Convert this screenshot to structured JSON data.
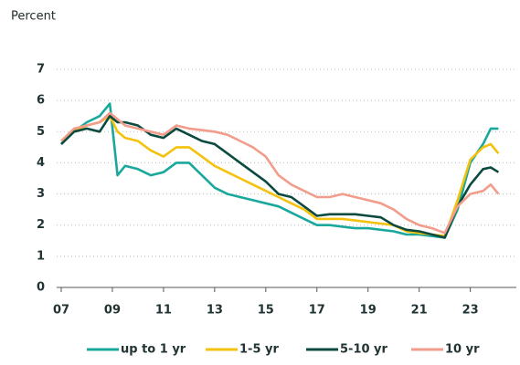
{
  "chart_data": {
    "type": "line",
    "y_label": "Percent",
    "x": [
      2007,
      2007.5,
      2008,
      2008.5,
      2008.9,
      2009.2,
      2009.5,
      2010,
      2010.5,
      2011,
      2011.5,
      2012,
      2012.5,
      2013,
      2013.5,
      2014,
      2014.5,
      2015,
      2015.5,
      2016,
      2016.5,
      2017,
      2017.5,
      2018,
      2018.5,
      2019,
      2019.5,
      2020,
      2020.5,
      2021,
      2021.5,
      2022,
      2022.5,
      2023,
      2023.5,
      2023.8,
      2024.1
    ],
    "series": [
      {
        "name": "up to 1 yr",
        "color": "#1aa89c",
        "values": [
          4.6,
          5.0,
          5.3,
          5.5,
          5.9,
          3.6,
          3.9,
          3.8,
          3.6,
          3.7,
          4.0,
          4.0,
          3.6,
          3.2,
          3.0,
          2.9,
          2.8,
          2.7,
          2.6,
          2.4,
          2.2,
          2.0,
          2.0,
          1.95,
          1.9,
          1.9,
          1.85,
          1.8,
          1.7,
          1.7,
          1.65,
          1.6,
          2.5,
          4.0,
          4.6,
          5.1,
          5.1
        ]
      },
      {
        "name": "1-5 yr",
        "color": "#f4c20d",
        "values": [
          4.7,
          5.0,
          5.2,
          5.3,
          5.5,
          5.0,
          4.8,
          4.7,
          4.4,
          4.2,
          4.5,
          4.5,
          4.2,
          3.9,
          3.7,
          3.5,
          3.3,
          3.1,
          2.9,
          2.7,
          2.5,
          2.2,
          2.2,
          2.2,
          2.15,
          2.1,
          2.05,
          2.0,
          1.8,
          1.75,
          1.7,
          1.65,
          2.8,
          4.1,
          4.5,
          4.6,
          4.3
        ]
      },
      {
        "name": "5-10 yr",
        "color": "#0b4a3f",
        "values": [
          4.6,
          5.0,
          5.1,
          5.0,
          5.5,
          5.3,
          5.3,
          5.2,
          4.9,
          4.8,
          5.1,
          4.9,
          4.7,
          4.6,
          4.3,
          4.0,
          3.7,
          3.4,
          3.0,
          2.9,
          2.6,
          2.3,
          2.35,
          2.35,
          2.35,
          2.3,
          2.25,
          2.0,
          1.85,
          1.8,
          1.7,
          1.6,
          2.6,
          3.3,
          3.8,
          3.85,
          3.7
        ]
      },
      {
        "name": "10 yr",
        "color": "#f29d8c",
        "values": [
          4.7,
          5.1,
          5.2,
          5.3,
          5.6,
          5.4,
          5.2,
          5.1,
          5.0,
          4.9,
          5.2,
          5.1,
          5.05,
          5.0,
          4.9,
          4.7,
          4.5,
          4.2,
          3.6,
          3.3,
          3.1,
          2.9,
          2.9,
          3.0,
          2.9,
          2.8,
          2.7,
          2.5,
          2.2,
          2.0,
          1.9,
          1.75,
          2.6,
          3.0,
          3.1,
          3.3,
          3.0
        ]
      }
    ],
    "xlim": [
      2007,
      2024.8
    ],
    "xticks": [
      {
        "value": 2007,
        "label": "07"
      },
      {
        "value": 2009,
        "label": "09"
      },
      {
        "value": 2011,
        "label": "11"
      },
      {
        "value": 2013,
        "label": "13"
      },
      {
        "value": 2015,
        "label": "15"
      },
      {
        "value": 2017,
        "label": "17"
      },
      {
        "value": 2019,
        "label": "19"
      },
      {
        "value": 2021,
        "label": "21"
      },
      {
        "value": 2023,
        "label": "23"
      }
    ],
    "ylim": [
      0,
      7
    ],
    "yticks": [
      0,
      1,
      2,
      3,
      4,
      5,
      6,
      7
    ],
    "grid": true,
    "legend": "bottom"
  }
}
